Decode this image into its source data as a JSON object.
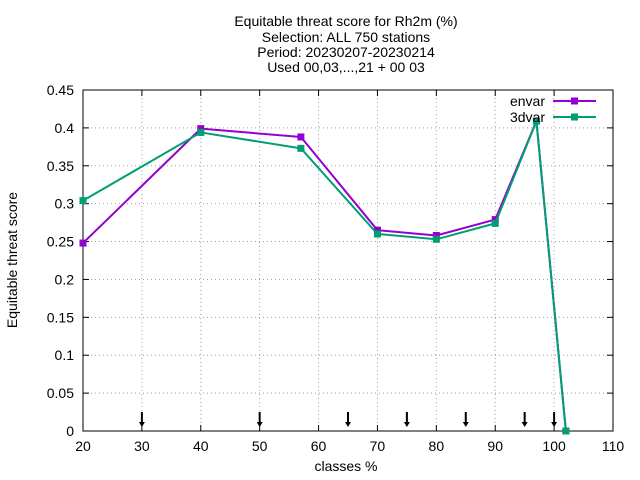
{
  "chart_data": {
    "type": "line",
    "title_lines": [
      "Equitable threat score  for Rh2m (%)",
      "Selection: ALL    750 stations",
      "Period: 20230207-20230214",
      "Used 00,03,...,21 + 00 03"
    ],
    "xlabel": "classes %",
    "ylabel": "Equitable threat score",
    "xlim": [
      20,
      110
    ],
    "ylim": [
      0,
      0.45
    ],
    "xticks": [
      20,
      30,
      40,
      50,
      60,
      70,
      80,
      90,
      100,
      110
    ],
    "xtick_labels": [
      "20",
      "30",
      "40",
      "50",
      "60",
      "70",
      "80",
      "90",
      "100",
      "110"
    ],
    "yticks": [
      0,
      0.05,
      0.1,
      0.15,
      0.2,
      0.25,
      0.3,
      0.35,
      0.4,
      0.45
    ],
    "ytick_labels": [
      "0",
      "0.05",
      "0.1",
      "0.15",
      "0.2",
      "0.25",
      "0.3",
      "0.35",
      "0.4",
      "0.45"
    ],
    "grid": true,
    "legend_position": "top-right",
    "series": [
      {
        "name": "envar",
        "color": "#9400d3",
        "marker": "square",
        "x": [
          20,
          40,
          57,
          70,
          80,
          90,
          97,
          102
        ],
        "y": [
          0.248,
          0.399,
          0.388,
          0.265,
          0.258,
          0.279,
          0.409,
          0.0
        ]
      },
      {
        "name": "3dvar",
        "color": "#009e73",
        "marker": "square",
        "x": [
          20,
          40,
          57,
          70,
          80,
          90,
          97,
          102
        ],
        "y": [
          0.304,
          0.394,
          0.373,
          0.26,
          0.253,
          0.274,
          0.409,
          0.0
        ]
      }
    ],
    "class_markers_x": [
      30,
      50,
      65,
      75,
      85,
      95,
      100
    ]
  }
}
